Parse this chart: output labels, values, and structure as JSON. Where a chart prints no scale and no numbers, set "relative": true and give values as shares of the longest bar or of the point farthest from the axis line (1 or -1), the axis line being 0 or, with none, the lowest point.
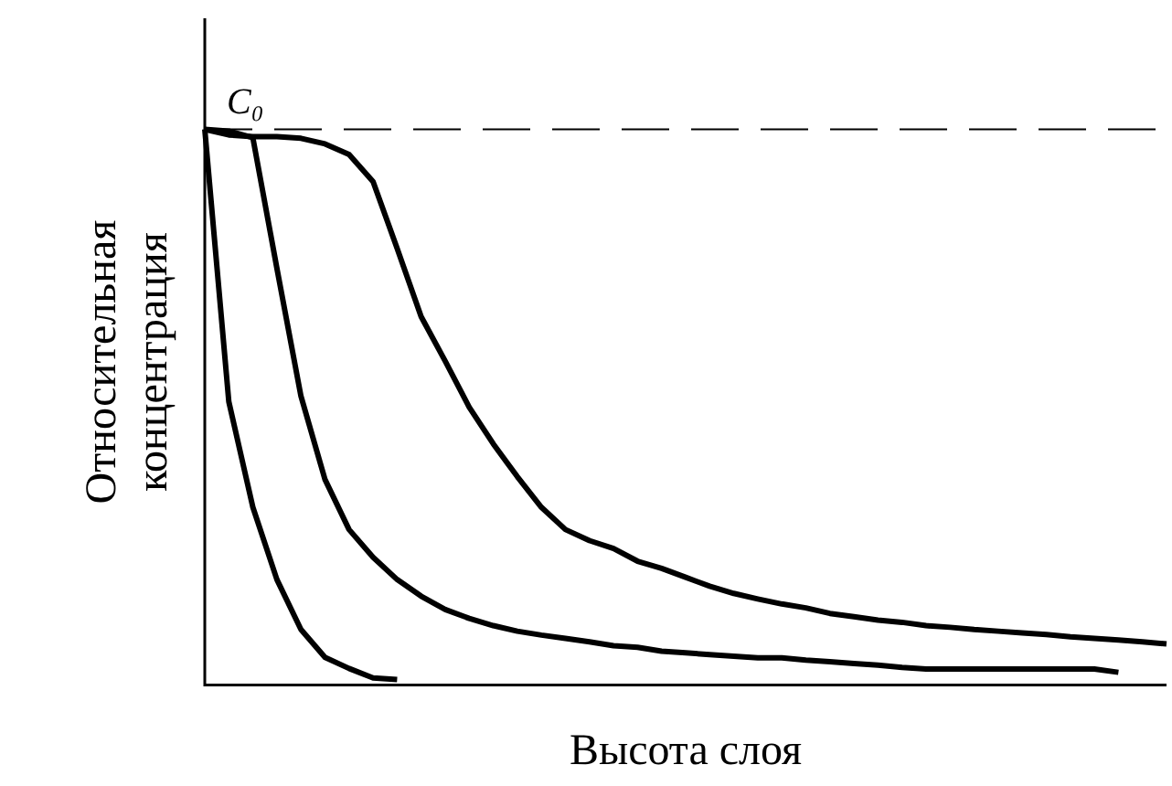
{
  "chart_data": {
    "type": "line",
    "xlabel": "Высота слоя",
    "ylabel": "Относительная концентрация",
    "relative": true,
    "categories": [
      null,
      null,
      null,
      null,
      null,
      null,
      null,
      null,
      null,
      null,
      null,
      null,
      null,
      null,
      null,
      null,
      null,
      null,
      null,
      null,
      null,
      null,
      null,
      null,
      null,
      null,
      null,
      null,
      null,
      null,
      null,
      null,
      null,
      null,
      null,
      null,
      null,
      null,
      null,
      null,
      null
    ],
    "series": [
      {
        "color": "#000000",
        "values": [
          1,
          0.51,
          0.32,
          0.19,
          0.1,
          0.05,
          0.03,
          0.013,
          0.01,
          null,
          null,
          null,
          null,
          null,
          null,
          null,
          null,
          null,
          null,
          null,
          null,
          null,
          null,
          null,
          null,
          null,
          null,
          null,
          null,
          null,
          null,
          null,
          null,
          null,
          null,
          null,
          null,
          null,
          null,
          null,
          null
        ]
      },
      {
        "color": "#000000",
        "values": [
          1,
          0.997,
          0.985,
          0.75,
          0.52,
          0.37,
          0.28,
          0.23,
          0.19,
          0.16,
          0.136,
          0.12,
          0.107,
          0.097,
          0.09,
          0.084,
          0.078,
          0.071,
          0.068,
          0.061,
          0.058,
          0.055,
          0.052,
          0.049,
          0.049,
          0.045,
          0.042,
          0.039,
          0.036,
          0.032,
          0.029,
          0.029,
          0.029,
          0.029,
          0.029,
          0.029,
          0.029,
          0.029,
          0.023,
          null,
          null
        ]
      },
      {
        "color": "#000000",
        "values": [
          1,
          0.99,
          0.987,
          0.987,
          0.984,
          0.974,
          0.955,
          0.906,
          0.786,
          0.663,
          0.583,
          0.5,
          0.434,
          0.375,
          0.32,
          0.28,
          0.26,
          0.246,
          0.223,
          0.21,
          0.194,
          0.178,
          0.165,
          0.155,
          0.146,
          0.139,
          0.129,
          0.123,
          0.117,
          0.113,
          0.107,
          0.104,
          0.1,
          0.097,
          0.094,
          0.091,
          0.087,
          0.084,
          0.081,
          0.078,
          0.074
        ]
      }
    ],
    "ref_lines": [
      {
        "axis": "y",
        "value": 1,
        "label": "C₀",
        "color": "#000000",
        "line_style": "dashed"
      }
    ]
  }
}
